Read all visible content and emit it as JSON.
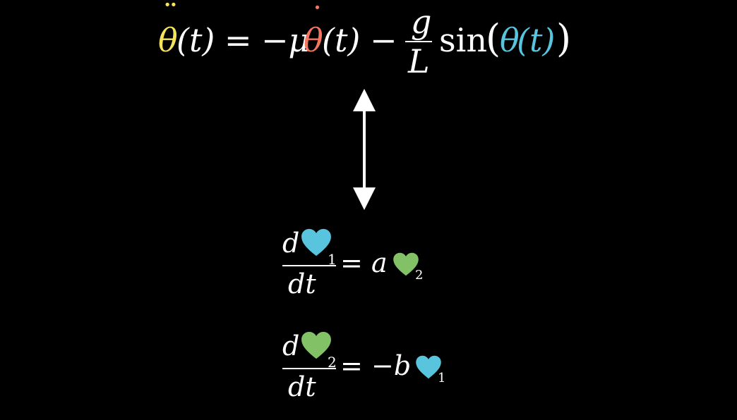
{
  "equation_top": {
    "theta_dd": "θ",
    "dd_mark": "¨",
    "paren_t1": "(t)",
    "equals": "=",
    "minus_mu": "−μ",
    "theta_d": "θ",
    "d_mark": "˙",
    "paren_t2": "(t)",
    "minus": "−",
    "g": "g",
    "L": "L",
    "sin": "sin",
    "lparen": "(",
    "theta": "θ",
    "paren_t3": "(t)",
    "rparen": ")"
  },
  "equation_1": {
    "d": "d",
    "heart_sub": "1",
    "dt": "dt",
    "equals": "=",
    "coef": "a",
    "rhs_sub": "2"
  },
  "equation_2": {
    "d": "d",
    "heart_sub": "2",
    "dt": "dt",
    "equals": "=",
    "coef": "−b",
    "rhs_sub": "1"
  },
  "colors": {
    "theta_dd": "#f5e35c",
    "theta_d": "#f4765f",
    "theta": "#58c4dd",
    "heart_blue": "#58c4dd",
    "heart_green": "#83c167"
  },
  "icons": [
    "double-arrow-icon",
    "heart-blue-icon",
    "heart-green-icon"
  ]
}
